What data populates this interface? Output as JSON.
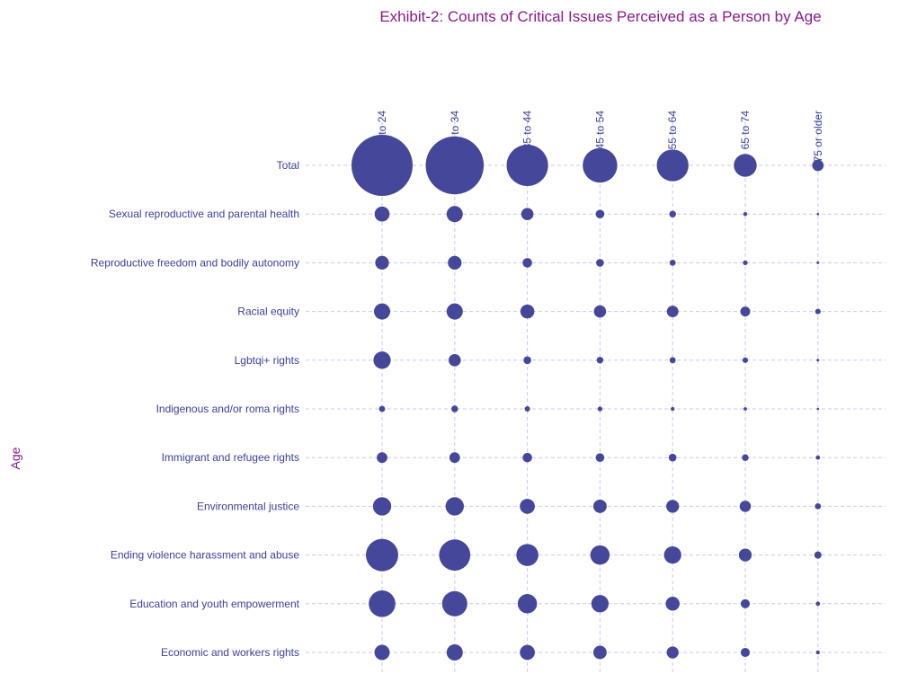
{
  "chart_data": {
    "type": "scatter",
    "subtype": "bubble",
    "title": "Exhibit-2: Counts of Critical Issues Perceived as a Person by Age",
    "ylabel": "Age",
    "xlabel": "",
    "x_categories": [
      "18 to 24",
      "25 to 34",
      "35 to 44",
      "45 to 54",
      "55 to 64",
      "65 to 74",
      "75 or older"
    ],
    "y_categories": [
      "Total",
      "Sexual reproductive and parental health",
      "Reproductive freedom and bodily autonomy",
      "Racial equity",
      "Lgbtqi+ rights",
      "Indigenous and/or roma rights",
      "Immigrant and refugee rights",
      "Environmental justice",
      "Ending violence harassment and abuse",
      "Education and youth empowerment",
      "Economic and workers rights"
    ],
    "values": [
      [
        1000,
        900,
        460,
        320,
        270,
        140,
        35
      ],
      [
        60,
        70,
        40,
        20,
        12,
        4,
        1
      ],
      [
        50,
        50,
        24,
        16,
        10,
        6,
        2
      ],
      [
        70,
        70,
        52,
        40,
        36,
        26,
        8
      ],
      [
        80,
        40,
        16,
        12,
        10,
        8,
        2
      ],
      [
        10,
        12,
        8,
        6,
        4,
        3,
        1
      ],
      [
        30,
        30,
        24,
        20,
        16,
        12,
        5
      ],
      [
        90,
        90,
        60,
        48,
        44,
        34,
        10
      ],
      [
        280,
        260,
        130,
        100,
        80,
        44,
        14
      ],
      [
        190,
        170,
        100,
        80,
        52,
        22,
        5
      ],
      [
        62,
        70,
        60,
        48,
        38,
        22,
        4
      ]
    ],
    "x_axis_position": "top",
    "grid": true,
    "colors": {
      "bubble": "#45479a",
      "title": "#8b1a8b",
      "labels": "#3b3f9a",
      "grid": "#c7c9f0"
    }
  }
}
